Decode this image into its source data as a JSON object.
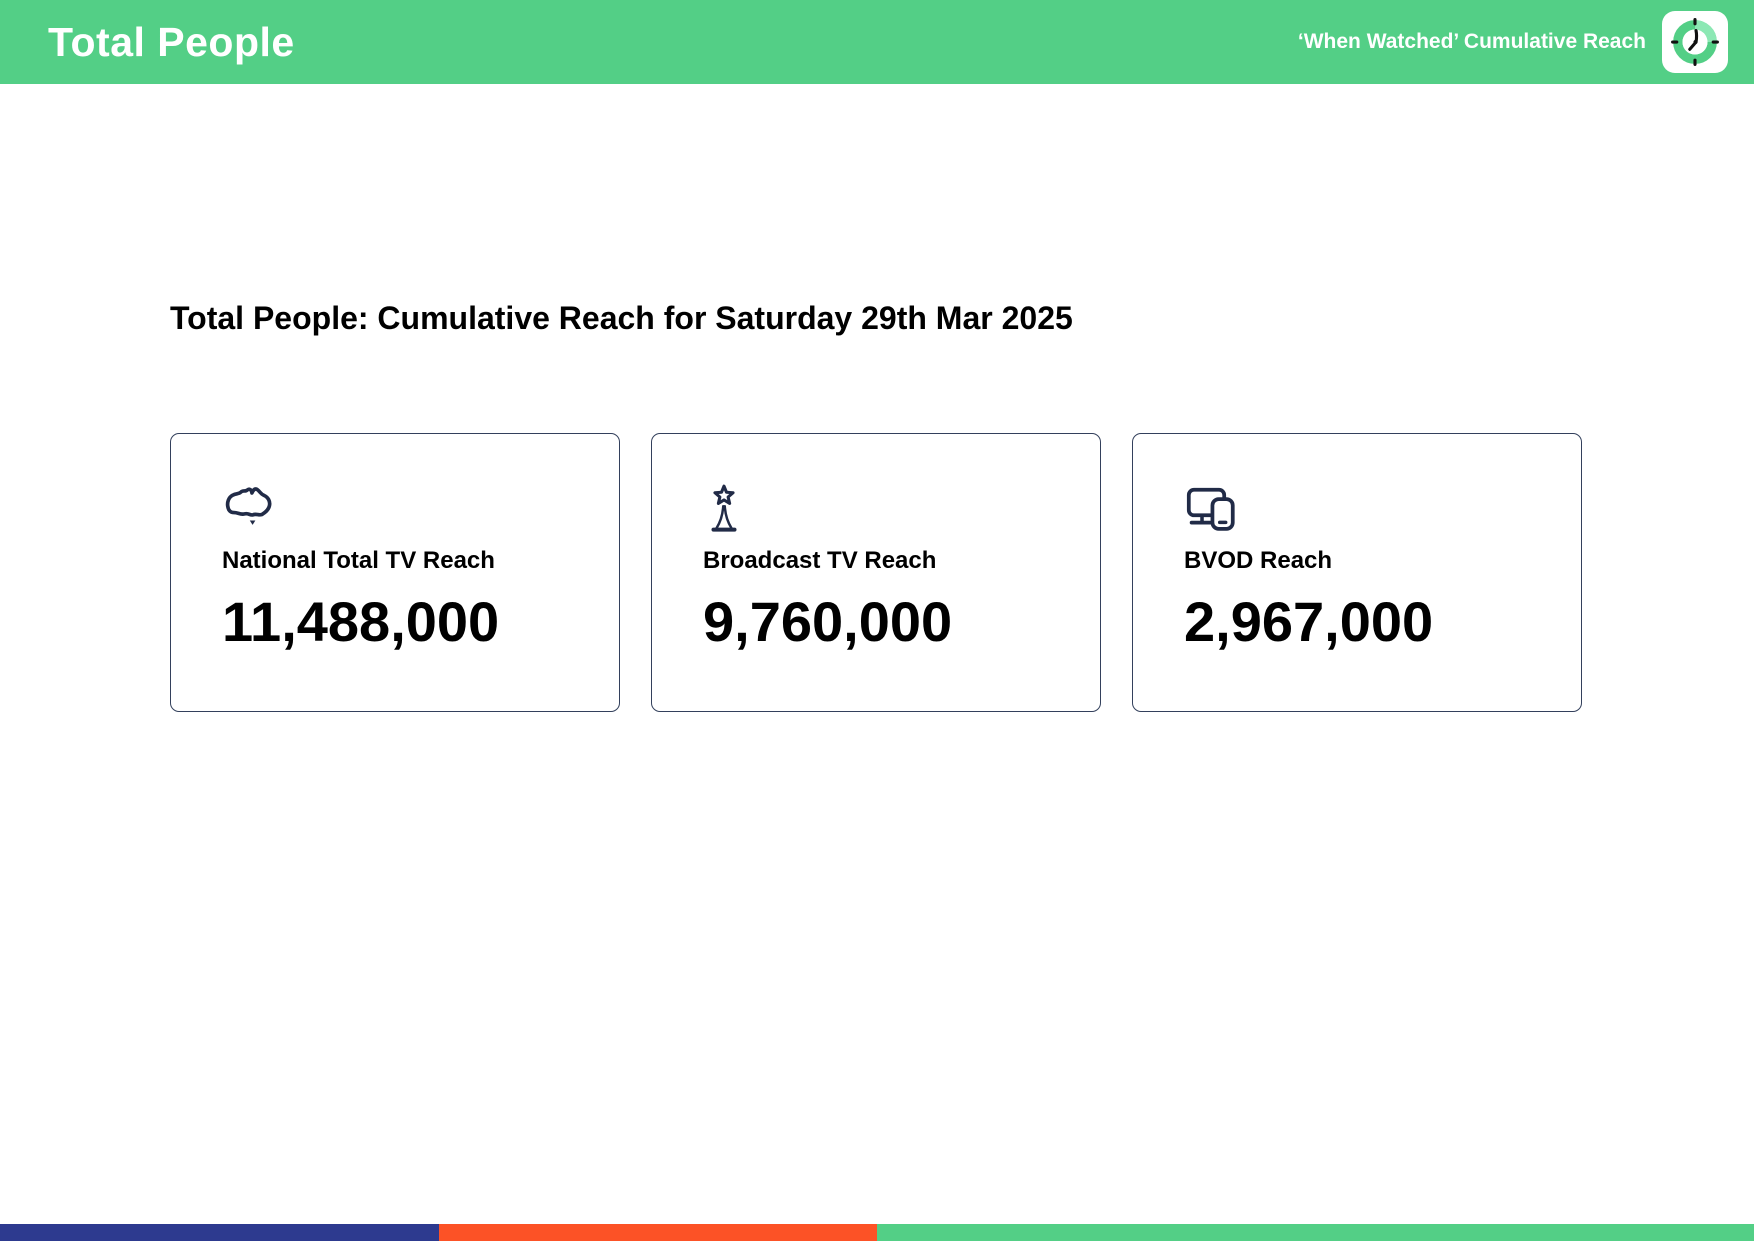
{
  "header": {
    "title": "Total People",
    "subtitle": "‘When Watched’ Cumulative Reach",
    "bg_color": "#53CF86",
    "icon": "clock-badge-icon"
  },
  "main": {
    "heading": "Total People: Cumulative Reach for Saturday 29th Mar 2025",
    "cards": [
      {
        "icon": "australia-map-icon",
        "label": "National Total TV Reach",
        "value": "11,488,000"
      },
      {
        "icon": "broadcast-tower-star-icon",
        "label": "Broadcast TV Reach",
        "value": "9,760,000"
      },
      {
        "icon": "devices-icon",
        "label": "BVOD Reach",
        "value": "2,967,000"
      }
    ],
    "card_border_color": "#33405C",
    "icon_color": "#212B47"
  },
  "footer": {
    "bar_colors": [
      "#2D3A8F",
      "#FC5226",
      "#53CF86"
    ],
    "bar_widths_pct": [
      25,
      25,
      50
    ]
  }
}
